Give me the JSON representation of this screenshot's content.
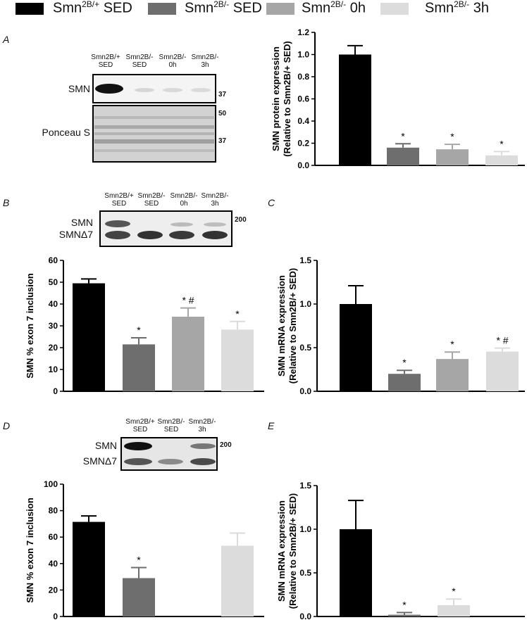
{
  "legend": [
    {
      "label": "Smn2B/+ SED",
      "base": "Smn",
      "sup": "2B/+",
      "rest": " SED",
      "color": "#000000"
    },
    {
      "label": "Smn2B/- SED",
      "base": "Smn",
      "sup": "2B/-",
      "rest": " SED",
      "color": "#6e6e6e"
    },
    {
      "label": "Smn2B/- 0h",
      "base": "Smn",
      "sup": "2B/-",
      "rest": " 0h",
      "color": "#a6a6a6"
    },
    {
      "label": "Smn2B/- 3h",
      "base": "Smn",
      "sup": "2B/-",
      "rest": " 3h",
      "color": "#dcdcdc"
    }
  ],
  "panels": {
    "A": "A",
    "B": "B",
    "C": "C",
    "D": "D",
    "E": "E"
  },
  "blots": {
    "A": {
      "lanes": [
        [
          "Smn2B/+",
          "SED"
        ],
        [
          "Smn2B/-",
          "SED"
        ],
        [
          "Smn2B/-",
          "0h"
        ],
        [
          "Smn2B/-",
          "3h"
        ]
      ],
      "rows": [
        "SMN",
        "Ponceau S"
      ],
      "markers": [
        "37",
        "50",
        "37"
      ]
    },
    "B": {
      "lanes": [
        [
          "Smn2B/+",
          "SED"
        ],
        [
          "Smn2B/-",
          "SED"
        ],
        [
          "Smn2B/-",
          "0h"
        ],
        [
          "Smn2B/-",
          "3h"
        ]
      ],
      "rows": [
        "SMN",
        "SMNΔ7"
      ],
      "markers": [
        "200"
      ]
    },
    "D": {
      "lanes": [
        [
          "Smn2B/+",
          "SED"
        ],
        [
          "Smn2B/-",
          "SED"
        ],
        [
          "Smn2B/-",
          "3h"
        ]
      ],
      "rows": [
        "SMN",
        "SMNΔ7"
      ],
      "markers": [
        "200"
      ]
    }
  },
  "chart_data": [
    {
      "id": "A",
      "type": "bar",
      "categories": [
        "Smn2B/+ SED",
        "Smn2B/- SED",
        "Smn2B/- 0h",
        "Smn2B/- 3h"
      ],
      "values": [
        1.0,
        0.16,
        0.145,
        0.09
      ],
      "errors": [
        0.08,
        0.035,
        0.045,
        0.035
      ],
      "marks": [
        "",
        "*",
        "*",
        "*"
      ],
      "colors": [
        "#000000",
        "#6e6e6e",
        "#a6a6a6",
        "#dcdcdc"
      ],
      "ylabel1": "SMN protein expression",
      "ylabel2": "(Relative to Smn2B/+ SED)",
      "ylim": [
        0,
        1.2
      ],
      "yticks": [
        "0.0",
        "0.2",
        "0.4",
        "0.6",
        "0.8",
        "1.0",
        "1.2"
      ]
    },
    {
      "id": "B",
      "type": "bar",
      "categories": [
        "Smn2B/+ SED",
        "Smn2B/- SED",
        "Smn2B/- 0h",
        "Smn2B/- 3h"
      ],
      "values": [
        49.5,
        21.5,
        34.2,
        28.3
      ],
      "errors": [
        2.0,
        3.0,
        4.0,
        3.7
      ],
      "marks": [
        "",
        "*",
        "* #",
        "*"
      ],
      "colors": [
        "#000000",
        "#6e6e6e",
        "#a6a6a6",
        "#dcdcdc"
      ],
      "ylabel1": "SMN % exon 7 inclusion",
      "ylabel2": "",
      "ylim": [
        0,
        60
      ],
      "yticks": [
        "0",
        "10",
        "20",
        "30",
        "40",
        "50",
        "60"
      ]
    },
    {
      "id": "C",
      "type": "bar",
      "categories": [
        "Smn2B/+ SED",
        "Smn2B/- SED",
        "Smn2B/- 0h",
        "Smn2B/- 3h"
      ],
      "values": [
        1.0,
        0.2,
        0.37,
        0.455
      ],
      "errors": [
        0.21,
        0.04,
        0.08,
        0.04
      ],
      "marks": [
        "",
        "*",
        "*",
        "* #"
      ],
      "colors": [
        "#000000",
        "#6e6e6e",
        "#a6a6a6",
        "#dcdcdc"
      ],
      "ylabel1": "SMN mRNA expression",
      "ylabel2": "(Relative to Smn2B/+ SED)",
      "ylim": [
        0,
        1.5
      ],
      "yticks": [
        "0.0",
        "0.5",
        "1.0",
        "1.5"
      ]
    },
    {
      "id": "D",
      "type": "bar",
      "categories": [
        "Smn2B/+ SED",
        "Smn2B/- SED",
        "Smn2B/- 3h"
      ],
      "values": [
        71.5,
        29.0,
        53.5
      ],
      "errors": [
        4.5,
        8.0,
        9.5
      ],
      "marks": [
        "",
        "*",
        ""
      ],
      "colors": [
        "#000000",
        "#6e6e6e",
        "#dcdcdc"
      ],
      "ylabel1": "SMN % exon 7 inclusion",
      "ylabel2": "",
      "ylim": [
        0,
        100
      ],
      "yticks": [
        "0",
        "20",
        "40",
        "60",
        "80",
        "100"
      ]
    },
    {
      "id": "E",
      "type": "bar",
      "categories": [
        "Smn2B/+ SED",
        "Smn2B/- SED",
        "Smn2B/- 3h"
      ],
      "values": [
        1.0,
        0.02,
        0.13
      ],
      "errors": [
        0.33,
        0.025,
        0.07
      ],
      "marks": [
        "",
        "*",
        "*"
      ],
      "colors": [
        "#000000",
        "#6e6e6e",
        "#dcdcdc"
      ],
      "ylabel1": "SMN mRNA expression",
      "ylabel2": "(Relative to Smn2B/+ SED)",
      "ylim": [
        0,
        1.5
      ],
      "yticks": [
        "0.0",
        "0.5",
        "1.0",
        "1.5"
      ]
    }
  ]
}
